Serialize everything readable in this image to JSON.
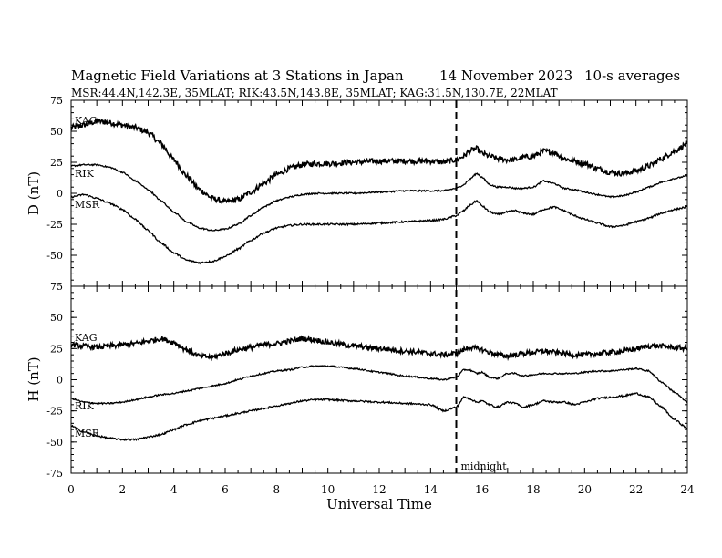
{
  "chart_data": {
    "type": "line",
    "title": "Magnetic Field Variations at 3 Stations in Japan",
    "date": "14 November 2023",
    "averaging": "10-s averages",
    "subtitle": "MSR:44.4N,142.3E, 35MLAT;  RIK:43.5N,143.8E, 35MLAT;  KAG:31.5N,130.7E, 22MLAT",
    "xlabel": "Universal Time",
    "xlim": [
      0,
      24
    ],
    "x_ticks": [
      "0",
      "2",
      "4",
      "6",
      "8",
      "10",
      "12",
      "14",
      "16",
      "18",
      "20",
      "22",
      "24"
    ],
    "midnight": {
      "x": 15,
      "label": "midnight"
    },
    "grid": false,
    "panels": [
      {
        "ylabel": "D (nT)",
        "ylim": [
          -75,
          75
        ],
        "y_ticks": [
          "75",
          "50",
          "25",
          "0",
          "-25",
          "-50",
          "-75"
        ],
        "series": [
          {
            "name": "KAG",
            "noise": 2.2,
            "x": [
              0,
              0.5,
              1,
              1.5,
              2,
              2.5,
              3,
              3.5,
              4,
              4.5,
              5,
              5.5,
              6,
              6.5,
              7,
              7.5,
              8,
              8.5,
              9,
              9.5,
              10,
              11,
              12,
              13,
              14,
              14.5,
              15,
              15.3,
              15.5,
              15.8,
              16,
              16.3,
              16.6,
              17,
              17.3,
              17.6,
              18,
              18.4,
              18.8,
              19.2,
              19.6,
              20,
              20.5,
              21,
              21.5,
              22,
              22.5,
              23,
              23.5,
              24
            ],
            "y": [
              53,
              55,
              58,
              57,
              55,
              53,
              49,
              40,
              27,
              14,
              3,
              -4,
              -7,
              -5,
              1,
              8,
              15,
              20,
              23,
              24,
              24,
              25,
              26,
              26,
              26,
              25,
              27,
              30,
              34,
              36,
              32,
              30,
              28,
              27,
              27,
              29,
              30,
              34,
              33,
              28,
              26,
              24,
              20,
              17,
              16,
              18,
              22,
              28,
              34,
              40
            ]
          },
          {
            "name": "RIK",
            "noise": 0.6,
            "x": [
              0,
              0.5,
              1,
              1.5,
              2,
              2.5,
              3,
              3.5,
              4,
              4.5,
              5,
              5.5,
              6,
              6.5,
              7,
              7.5,
              8,
              8.5,
              9,
              9.5,
              10,
              11,
              12,
              13,
              14,
              14.5,
              15,
              15.3,
              15.5,
              15.8,
              16,
              16.3,
              16.6,
              17,
              17.3,
              17.6,
              18,
              18.4,
              18.8,
              19.2,
              19.6,
              20,
              20.5,
              21,
              21.5,
              22,
              22.5,
              23,
              23.5,
              24
            ],
            "y": [
              22,
              23,
              23,
              21,
              17,
              10,
              3,
              -6,
              -15,
              -23,
              -28,
              -30,
              -29,
              -25,
              -18,
              -11,
              -6,
              -3,
              -1,
              0,
              0,
              0,
              1,
              2,
              2,
              2,
              4,
              7,
              11,
              16,
              13,
              7,
              5,
              5,
              4,
              4,
              5,
              10,
              8,
              4,
              3,
              1,
              -1,
              -3,
              -2,
              1,
              5,
              9,
              12,
              14
            ]
          },
          {
            "name": "MSR",
            "noise": 0.7,
            "x": [
              0,
              0.5,
              1,
              1.5,
              2,
              2.5,
              3,
              3.5,
              4,
              4.5,
              5,
              5.5,
              6,
              6.5,
              7,
              7.5,
              8,
              8.5,
              9,
              9.5,
              10,
              11,
              12,
              13,
              14,
              14.5,
              15,
              15.3,
              15.5,
              15.8,
              16,
              16.3,
              16.6,
              17,
              17.3,
              17.6,
              18,
              18.4,
              18.8,
              19.2,
              19.6,
              20,
              20.5,
              21,
              21.5,
              22,
              22.5,
              23,
              23.5,
              24
            ],
            "y": [
              -3,
              -1,
              -4,
              -8,
              -13,
              -21,
              -30,
              -40,
              -48,
              -54,
              -56,
              -55,
              -51,
              -45,
              -38,
              -32,
              -28,
              -26,
              -25,
              -25,
              -25,
              -25,
              -24,
              -23,
              -22,
              -21,
              -18,
              -14,
              -10,
              -6,
              -10,
              -15,
              -17,
              -15,
              -14,
              -16,
              -17,
              -13,
              -11,
              -14,
              -18,
              -21,
              -24,
              -27,
              -26,
              -23,
              -20,
              -16,
              -13,
              -11
            ]
          }
        ]
      },
      {
        "ylabel": "H (nT)",
        "ylim": [
          -75,
          75
        ],
        "y_ticks": [
          "75",
          "50",
          "25",
          "0",
          "-25",
          "-50",
          "-75"
        ],
        "series": [
          {
            "name": "KAG",
            "noise": 2.0,
            "x": [
              0,
              0.5,
              1,
              1.5,
              2,
              2.5,
              3,
              3.5,
              4,
              4.5,
              5,
              5.5,
              6,
              6.5,
              7,
              7.5,
              8,
              8.5,
              9,
              9.5,
              10,
              11,
              12,
              13,
              14,
              14.5,
              15,
              15.3,
              15.5,
              15.8,
              16,
              16.3,
              16.6,
              17,
              17.3,
              17.6,
              18,
              18.4,
              18.8,
              19.2,
              19.6,
              20,
              20.5,
              21,
              21.5,
              22,
              22.5,
              23,
              23.5,
              24
            ],
            "y": [
              28,
              27,
              26,
              27,
              28,
              29,
              31,
              33,
              30,
              24,
              19,
              18,
              21,
              24,
              26,
              28,
              29,
              31,
              33,
              32,
              30,
              27,
              25,
              23,
              21,
              20,
              21,
              24,
              26,
              25,
              24,
              22,
              20,
              19,
              20,
              21,
              22,
              23,
              22,
              21,
              20,
              20,
              21,
              22,
              23,
              25,
              27,
              27,
              26,
              25
            ]
          },
          {
            "name": "RIK",
            "noise": 0.6,
            "x": [
              0,
              0.5,
              1,
              1.5,
              2,
              2.5,
              3,
              3.5,
              4,
              4.5,
              5,
              5.5,
              6,
              6.5,
              7,
              7.5,
              8,
              8.5,
              9,
              9.5,
              10,
              11,
              12,
              13,
              14,
              14.5,
              15,
              15.3,
              15.5,
              15.8,
              16,
              16.3,
              16.6,
              17,
              17.3,
              17.6,
              18,
              18.4,
              18.8,
              19.2,
              19.6,
              20,
              20.5,
              21,
              21.5,
              22,
              22.5,
              23,
              23.5,
              24
            ],
            "y": [
              -15,
              -18,
              -19,
              -19,
              -18,
              -16,
              -14,
              -12,
              -11,
              -9,
              -7,
              -5,
              -3,
              0,
              3,
              5,
              7,
              8,
              10,
              11,
              11,
              9,
              6,
              3,
              1,
              0,
              2,
              8,
              8,
              5,
              6,
              2,
              1,
              5,
              5,
              3,
              4,
              5,
              5,
              5,
              5,
              6,
              7,
              7,
              8,
              9,
              7,
              -2,
              -10,
              -18
            ]
          },
          {
            "name": "MSR",
            "noise": 0.7,
            "x": [
              0,
              0.5,
              1,
              1.5,
              2,
              2.5,
              3,
              3.5,
              4,
              4.5,
              5,
              5.5,
              6,
              6.5,
              7,
              7.5,
              8,
              8.5,
              9,
              9.5,
              10,
              11,
              12,
              13,
              14,
              14.5,
              15,
              15.3,
              15.5,
              15.8,
              16,
              16.3,
              16.6,
              17,
              17.3,
              17.6,
              18,
              18.4,
              18.8,
              19.2,
              19.6,
              20,
              20.5,
              21,
              21.5,
              22,
              22.5,
              23,
              23.5,
              24
            ],
            "y": [
              -37,
              -42,
              -45,
              -47,
              -48,
              -48,
              -46,
              -44,
              -40,
              -36,
              -33,
              -31,
              -29,
              -27,
              -25,
              -23,
              -21,
              -19,
              -17,
              -16,
              -16,
              -17,
              -18,
              -19,
              -20,
              -25,
              -22,
              -14,
              -15,
              -18,
              -17,
              -20,
              -22,
              -18,
              -19,
              -22,
              -20,
              -17,
              -18,
              -18,
              -20,
              -18,
              -15,
              -14,
              -13,
              -11,
              -14,
              -22,
              -32,
              -39
            ]
          }
        ]
      }
    ]
  }
}
